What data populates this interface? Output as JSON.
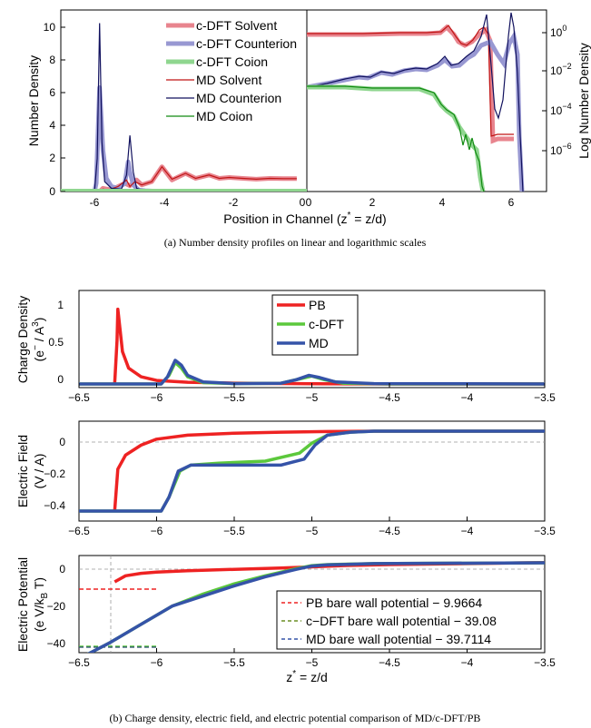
{
  "colors": {
    "solvent": "#e8848e",
    "solvent_md": "#c01515",
    "counterion": "#9898d2",
    "counterion_md": "#11115e",
    "coion": "#8fd68f",
    "coion_md": "#108a10",
    "pb": "#ee2222",
    "cdft": "#5cc83c",
    "md": "#3553a8",
    "left_axis": "#3a56b0",
    "right_axis": "#1e8b1e"
  },
  "captions": {
    "a": "(a)  Number density profiles on linear and logarithmic scales",
    "b": "(b)  Charge density, electric field, and electric potential comparison of MD/c-DFT/PB"
  },
  "chart_data": [
    {
      "id": "a",
      "type": "line",
      "xlabel": "Position in Channel (z* = z/d)",
      "ylabel_left": "Number Density",
      "ylabel_right": "Log Number Density",
      "left_panel": {
        "xlim": [
          -7,
          0.3
        ],
        "ylim": [
          0,
          11
        ],
        "xticks": [
          "-6",
          "-4",
          "-2",
          "0"
        ],
        "yticks": [
          "0",
          "2",
          "4",
          "6",
          "8",
          "10"
        ]
      },
      "right_panel": {
        "xlim": [
          0,
          6.5
        ],
        "log_scale": true,
        "yticks": [
          "10^0",
          "10^-2",
          "10^-4",
          "10^-6"
        ],
        "xticks": [
          "0",
          "2",
          "4",
          "6"
        ]
      },
      "legend": [
        "c-DFT Solvent",
        "c-DFT Counterion",
        "c-DFT Coion",
        "MD Solvent",
        "MD Counterion",
        "MD Coion"
      ],
      "series": [
        {
          "name": "c-DFT Solvent",
          "x": [
            -5.85,
            -5.75,
            -5.5,
            -5.1,
            -4.95,
            -4.75,
            -4.6,
            -4.3,
            -4.0,
            -3.7,
            -3.3,
            -3.0,
            -2.6,
            -2.3,
            -2,
            -1.6,
            -1.2,
            -0.8,
            -0.4,
            0
          ],
          "y": [
            0,
            0.2,
            0.1,
            0.5,
            0.35,
            0.7,
            0.4,
            0.6,
            1.5,
            0.7,
            1.1,
            0.8,
            1.0,
            0.8,
            0.85,
            0.8,
            0.75,
            0.8,
            0.78,
            0.78
          ]
        },
        {
          "name": "c-DFT Counterion",
          "x": [
            -6.0,
            -5.95,
            -5.85,
            -5.75,
            -5.65,
            -5.5,
            -5.3,
            -5.1,
            -5.0,
            -4.95,
            -4.85,
            -4.7,
            -4.5,
            -4.2,
            0
          ],
          "y": [
            0,
            0.5,
            6.3,
            2.5,
            0.8,
            0.3,
            0.2,
            0.5,
            1.8,
            1.2,
            0.4,
            0.1,
            0.05,
            0.02,
            0.02
          ]
        },
        {
          "name": "MD Solvent",
          "x": [
            -5.85,
            -5.75,
            -5.6,
            -5.3,
            -5.05,
            -4.95,
            -4.8,
            -4.6,
            -4.3,
            -4.0,
            -3.7,
            -3.3,
            -3.0,
            -2.6,
            -2.3,
            -2,
            -1.6,
            -1.2,
            -0.8,
            -0.4,
            0
          ],
          "y": [
            0,
            0.15,
            0.1,
            0.3,
            0.7,
            0.3,
            0.6,
            0.4,
            0.6,
            1.5,
            0.75,
            1.1,
            0.8,
            1.0,
            0.8,
            0.85,
            0.8,
            0.75,
            0.8,
            0.78,
            0.78
          ]
        },
        {
          "name": "MD Counterion",
          "x": [
            -6.0,
            -5.92,
            -5.85,
            -5.78,
            -5.7,
            -5.5,
            -5.2,
            -5.05,
            -4.95,
            -4.85,
            -4.75,
            -4.5,
            0
          ],
          "y": [
            0,
            2.0,
            10.2,
            3.0,
            0.6,
            0.2,
            0.15,
            1.0,
            3.4,
            1.2,
            0.2,
            0.05,
            0.02
          ]
        }
      ]
    },
    {
      "id": "b1",
      "type": "line",
      "ylabel": "Charge Density (e⁻ / A³)",
      "xlim": [
        -6.5,
        -3.5
      ],
      "xticks": [
        "−6.5",
        "−6",
        "−5.5",
        "−5",
        "−4.5",
        "−4",
        "−3.5"
      ],
      "yticks": [
        "0",
        "0.5",
        "1"
      ],
      "ylim": [
        -0.05,
        1.3
      ],
      "legend": [
        "PB",
        "c-DFT",
        "MD"
      ],
      "series": [
        {
          "name": "PB",
          "x": [
            -6.27,
            -6.255,
            -6.25,
            -6.22,
            -6.18,
            -6.1,
            -6.0,
            -5.8,
            -5.5,
            -5.0,
            -4.5,
            -3.5
          ],
          "y": [
            0,
            0.6,
            1.04,
            0.45,
            0.22,
            0.1,
            0.05,
            0.025,
            0.012,
            0.004,
            0.001,
            0
          ]
        },
        {
          "name": "c-DFT",
          "x": [
            -6.5,
            -5.97,
            -5.92,
            -5.88,
            -5.84,
            -5.8,
            -5.7,
            -5.5,
            -5.2,
            -5.08,
            -5.0,
            -4.92,
            -4.8,
            -4.5,
            -3.5
          ],
          "y": [
            0,
            0,
            0.12,
            0.3,
            0.22,
            0.1,
            0.02,
            0.005,
            0.01,
            0.07,
            0.11,
            0.06,
            0.01,
            0,
            0
          ]
        },
        {
          "name": "MD",
          "x": [
            -6.5,
            -5.97,
            -5.93,
            -5.88,
            -5.84,
            -5.8,
            -5.7,
            -5.5,
            -5.2,
            -5.1,
            -5.02,
            -4.95,
            -4.85,
            -4.6,
            -3.5
          ],
          "y": [
            0,
            0,
            0.1,
            0.33,
            0.26,
            0.12,
            0.03,
            0.005,
            0.01,
            0.06,
            0.12,
            0.09,
            0.03,
            0.005,
            0
          ]
        }
      ]
    },
    {
      "id": "b2",
      "type": "line",
      "ylabel": "Electric Field (V / A)",
      "xlim": [
        -6.5,
        -3.5
      ],
      "ylim": [
        -0.45,
        0.05
      ],
      "xticks": [
        "−6.5",
        "−6",
        "−5.5",
        "−5",
        "−4.5",
        "−4",
        "−3.5"
      ],
      "yticks": [
        "0",
        "−0.2",
        "−0.4"
      ],
      "series": [
        {
          "name": "PB",
          "x": [
            -6.27,
            -6.25,
            -6.2,
            -6.1,
            -6.0,
            -5.8,
            -5.5,
            -5.2,
            -4.9,
            -4.6,
            -3.5
          ],
          "y": [
            -0.4,
            -0.19,
            -0.12,
            -0.07,
            -0.04,
            -0.02,
            -0.01,
            -0.005,
            -0.002,
            0,
            0
          ]
        },
        {
          "name": "c-DFT",
          "x": [
            -6.5,
            -5.97,
            -5.92,
            -5.85,
            -5.78,
            -5.6,
            -5.3,
            -5.08,
            -5.0,
            -4.9,
            -4.75,
            -4.6,
            -3.5
          ],
          "y": [
            -0.4,
            -0.4,
            -0.33,
            -0.2,
            -0.17,
            -0.16,
            -0.15,
            -0.11,
            -0.06,
            -0.02,
            -0.005,
            0,
            0
          ]
        },
        {
          "name": "MD",
          "x": [
            -6.5,
            -5.97,
            -5.92,
            -5.86,
            -5.78,
            -5.6,
            -5.2,
            -5.05,
            -4.98,
            -4.9,
            -4.75,
            -4.6,
            -3.5
          ],
          "y": [
            -0.4,
            -0.4,
            -0.33,
            -0.2,
            -0.17,
            -0.17,
            -0.17,
            -0.14,
            -0.07,
            -0.02,
            -0.005,
            0,
            0
          ]
        }
      ]
    },
    {
      "id": "b3",
      "type": "line",
      "ylabel": "Electric Potential (e V/k_B T)",
      "xlabel": "z* = z/d",
      "xlim": [
        -6.5,
        -3.5
      ],
      "ylim": [
        -45,
        3
      ],
      "xticks": [
        "−6.5",
        "−6",
        "−5.5",
        "−5",
        "−4.5",
        "−4",
        "−3.5"
      ],
      "yticks": [
        "0",
        "−20",
        "−40"
      ],
      "legend": [
        "PB bare wall potential − 9.9664",
        "c−DFT bare wall potential − 39.08",
        "MD bare wall potential − 39.7114"
      ],
      "series": [
        {
          "name": "PB",
          "x": [
            -6.27,
            -6.2,
            -6.1,
            -6.0,
            -5.8,
            -5.5,
            -5.2,
            -5.0,
            -4.8,
            -4.5,
            -3.5
          ],
          "y": [
            -10,
            -7,
            -5.8,
            -5.2,
            -4.5,
            -3.8,
            -3.2,
            -2.6,
            -2.0,
            -1.5,
            -0.5
          ]
        },
        {
          "name": "c-DFT",
          "x": [
            -6.5,
            -6.3,
            -6.1,
            -5.9,
            -5.7,
            -5.5,
            -5.3,
            -5.1,
            -5.0,
            -4.9,
            -4.6,
            -3.5
          ],
          "y": [
            -48,
            -40,
            -31,
            -22,
            -16,
            -11,
            -7,
            -3.5,
            -2,
            -1.5,
            -1,
            -0.6
          ]
        },
        {
          "name": "MD",
          "x": [
            -6.5,
            -6.3,
            -6.1,
            -5.9,
            -5.7,
            -5.5,
            -5.3,
            -5.1,
            -5.0,
            -4.9,
            -4.6,
            -3.5
          ],
          "y": [
            -48,
            -40,
            -31,
            -22,
            -17,
            -12,
            -7.5,
            -3.8,
            -2.2,
            -1.6,
            -1,
            -0.6
          ]
        }
      ]
    }
  ]
}
